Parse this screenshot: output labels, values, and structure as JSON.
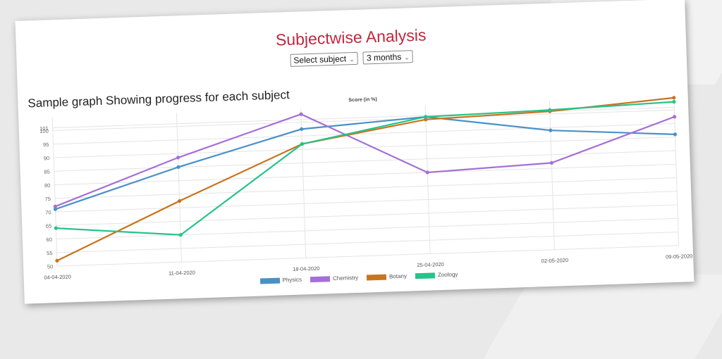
{
  "page": {
    "title": "Subjectwise Analysis",
    "subject_select": "Select subject",
    "range_select": "3 months",
    "graph_caption": "Sample graph Showing progress for each subject"
  },
  "chart_data": {
    "type": "line",
    "title": "Score (in %)",
    "xlabel": "",
    "ylabel": "",
    "categories": [
      "04-04-2020",
      "11-04-2020",
      "18-04-2020",
      "25-04-2020",
      "02-05-2020",
      "09-05-2020"
    ],
    "ylim": [
      50,
      101
    ],
    "yticks": [
      50,
      55,
      60,
      65,
      70,
      75,
      80,
      85,
      90,
      95,
      100,
      101
    ],
    "grid": true,
    "legend_position": "bottom",
    "series": [
      {
        "name": "Physics",
        "color": "#4a90c8",
        "values": [
          71,
          85,
          97.5,
          100.5,
          94,
          91
        ]
      },
      {
        "name": "Chemistry",
        "color": "#a56fd6",
        "values": [
          72,
          88.5,
          103,
          80,
          82,
          97.5
        ]
      },
      {
        "name": "Botany",
        "color": "#c8741f",
        "values": [
          52,
          72.5,
          92,
          99.5,
          101,
          104.5
        ]
      },
      {
        "name": "Zoology",
        "color": "#27c389",
        "values": [
          64,
          60,
          92,
          100.5,
          101.5,
          103
        ]
      }
    ]
  }
}
